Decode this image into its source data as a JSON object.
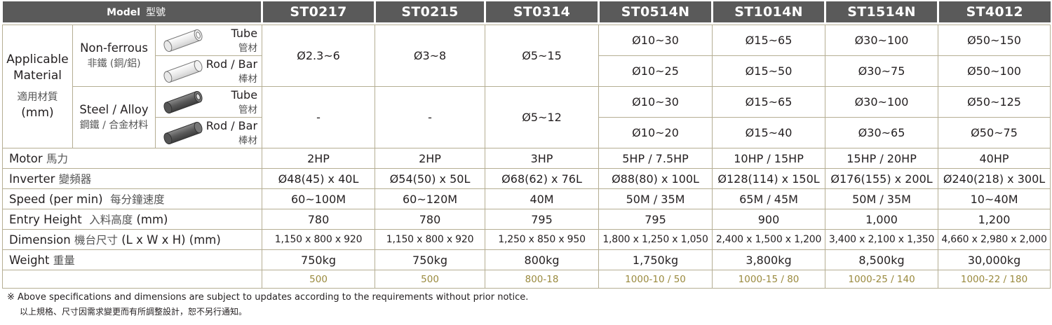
{
  "header": {
    "model_label": "Model",
    "model_label_zh": "型號",
    "models": [
      "ST0217",
      "ST0215",
      "ST0314",
      "ST0514N",
      "ST1014N",
      "ST1514N",
      "ST4012"
    ]
  },
  "applicable": {
    "label_en": "Applicable Material",
    "label_en_1": "Applicable",
    "label_en_2": "Material",
    "label_zh": "適用材質",
    "unit": "(mm)",
    "nonferrous": {
      "en": "Non-ferrous",
      "zh": "非鐵 (銅/鋁)"
    },
    "steel": {
      "en": "Steel / Alloy",
      "zh": "鋼鐵 / 合金材料"
    },
    "tube": {
      "en": "Tube",
      "zh": "管材"
    },
    "rod": {
      "en": "Rod / Bar",
      "zh": "棒材"
    },
    "nf_shared": [
      "Ø2.3~6",
      "Ø3~8",
      "Ø5~15"
    ],
    "nf_tube": [
      "Ø10~30",
      "Ø15~65",
      "Ø30~100",
      "Ø50~150"
    ],
    "nf_rod": [
      "Ø10~25",
      "Ø15~50",
      "Ø30~75",
      "Ø50~100"
    ],
    "st_shared": [
      "-",
      "-",
      "Ø5~12"
    ],
    "st_tube": [
      "Ø10~30",
      "Ø15~65",
      "Ø30~100",
      "Ø50~125"
    ],
    "st_rod": [
      "Ø10~20",
      "Ø15~40",
      "Ø30~65",
      "Ø50~75"
    ]
  },
  "rows": {
    "motor": {
      "en": "Motor",
      "zh": "馬力",
      "values": [
        "2HP",
        "2HP",
        "3HP",
        "5HP / 7.5HP",
        "10HP / 15HP",
        "15HP / 20HP",
        "40HP"
      ]
    },
    "inverter": {
      "en": "Inverter",
      "zh": "變頻器",
      "values": [
        "Ø48(45) x 40L",
        "Ø54(50) x 50L",
        "Ø68(62) x 76L",
        "Ø88(80) x 100L",
        "Ø128(114) x 150L",
        "Ø176(155) x 200L",
        "Ø240(218) x 300L"
      ]
    },
    "speed": {
      "en": "Speed (per min)",
      "zh": "每分鐘速度",
      "values": [
        "60~100M",
        "60~120M",
        "40M",
        "50M / 35M",
        "65M / 45M",
        "50M / 35M",
        "10~40M"
      ]
    },
    "entry": {
      "en": "Entry Height",
      "zh": "入料高度",
      "unit": "(mm)",
      "values": [
        "780",
        "780",
        "795",
        "795",
        "900",
        "1,000",
        "1,200"
      ]
    },
    "dimension": {
      "en": "Dimension",
      "zh": "機台尺寸",
      "unit": "(L x W x H) (mm)",
      "values": [
        "1,150 x 800 x 920",
        "1,150 x 800 x 920",
        "1,250 x 850 x 950",
        "1,800 x 1,250 x 1,050",
        "2,400 x 1,500 x 1,200",
        "3,400 x 2,100 x 1,350",
        "4,660 x 2,980 x 2,000"
      ]
    },
    "weight": {
      "en": "Weight",
      "zh": "重量",
      "values": [
        "750kg",
        "750kg",
        "800kg",
        "1,750kg",
        "3,800kg",
        "8,500kg",
        "30,000kg"
      ]
    },
    "codes": {
      "values": [
        "500",
        "500",
        "800-18",
        "1000-10 / 50",
        "1000-15 / 80",
        "1000-25 / 140",
        "1000-22 / 180"
      ]
    }
  },
  "note": {
    "en": "※ Above specifications and dimensions are subject to updates according to the requirements without prior notice.",
    "zh": "以上規格、尺寸因需求變更而有所調整設計，恕不另行通知。"
  },
  "colors": {
    "header_bg": "#5a5a5a",
    "border": "#b5ae93",
    "code_text": "#9a8a3e"
  }
}
